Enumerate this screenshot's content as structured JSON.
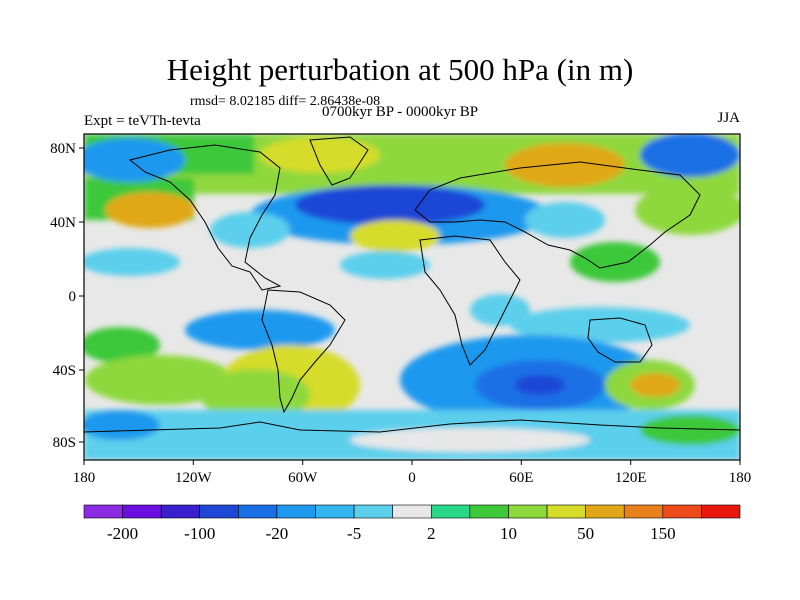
{
  "title": "Height perturbation at 500 hPa (in m)",
  "stats_text": "rmsd= 8.02185 diff= 2.86438e-08",
  "experiment": "Expt = teVTh-tevta",
  "period": "0700kyr BP - 0000kyr BP",
  "season": "JJA",
  "lon_labels": [
    "180",
    "120W",
    "60W",
    "0",
    "60E",
    "120E",
    "180"
  ],
  "lat_labels": [
    "80N",
    "40N",
    "0",
    "40S",
    "80S"
  ],
  "colorbar": {
    "colors": [
      "#8a2be2",
      "#6a0fe0",
      "#3a1fcc",
      "#1f47d6",
      "#1a6fe6",
      "#1f99ee",
      "#33b5f0",
      "#5ccfec",
      "#e8e8e8",
      "#28d888",
      "#3ec83a",
      "#8ed83c",
      "#d6dc2a",
      "#e0a818",
      "#e8801e",
      "#ec4a18",
      "#e8180c"
    ],
    "labels": [
      "-200",
      "-100",
      "-20",
      "-5",
      "2",
      "10",
      "50",
      "150"
    ]
  }
}
